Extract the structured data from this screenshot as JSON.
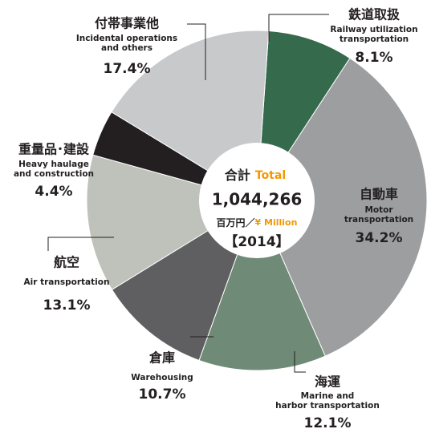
{
  "chart_data": {
    "type": "donut",
    "center": {
      "label_jp": "合計",
      "label_en": "Total",
      "total": "1,044,266",
      "unit_jp": "百万円／",
      "unit_en": "¥ Million",
      "year": "【2014】"
    },
    "series": [
      {
        "name": "鉄道取扱",
        "english": [
          "Railway utilization",
          "transportation"
        ],
        "value": 8.1,
        "value_label": "8.1%",
        "color": "#356a4c"
      },
      {
        "name": "自動車",
        "english": [
          "Motor",
          "transportation"
        ],
        "value": 34.2,
        "value_label": "34.2%",
        "color": "#9c9ea0"
      },
      {
        "name": "海運",
        "english": [
          "Marine and",
          "harbor transportation"
        ],
        "value": 12.1,
        "value_label": "12.1%",
        "color": "#6f8a76"
      },
      {
        "name": "倉庫",
        "english": [
          "Warehousing"
        ],
        "value": 10.7,
        "value_label": "10.7%",
        "color": "#5f5f61"
      },
      {
        "name": "航空",
        "english": [
          "Air transportation"
        ],
        "value": 13.1,
        "value_label": "13.1%",
        "color": "#bfc1bb"
      },
      {
        "name": "重量品･建設",
        "english": [
          "Heavy haulage",
          "and construction"
        ],
        "value": 4.4,
        "value_label": "4.4%",
        "color": "#231f20"
      },
      {
        "name": "付帯事業他",
        "english": [
          "Incidental operations",
          "and others"
        ],
        "value": 17.4,
        "value_label": "17.4%",
        "color": "#c8c9cb"
      }
    ]
  }
}
